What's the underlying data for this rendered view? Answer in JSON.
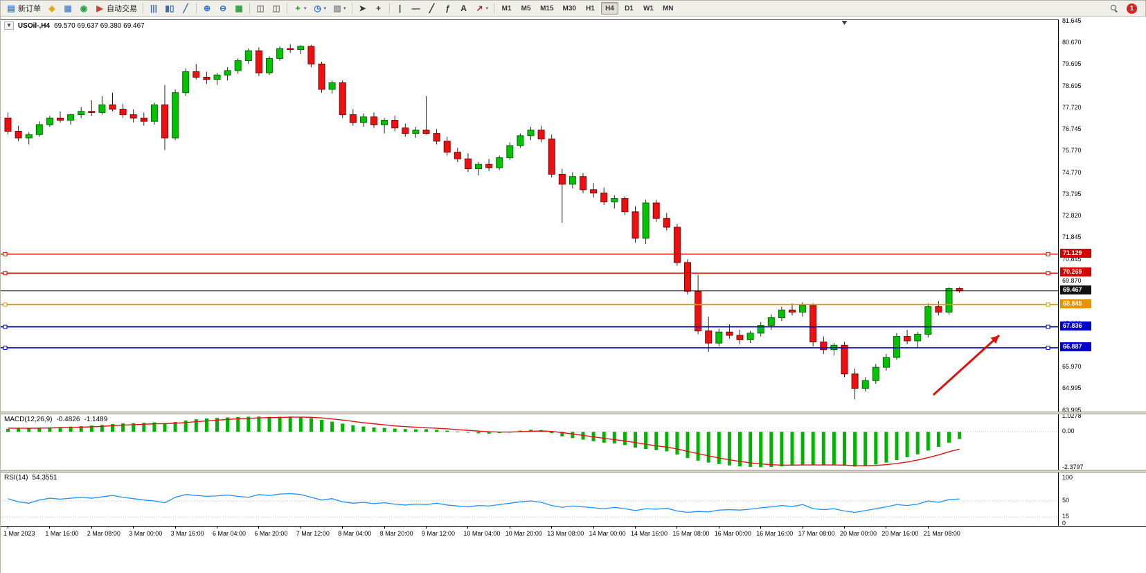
{
  "icons": {
    "one_click_glyph": "▼",
    "dropdown_glyph": "▾"
  },
  "colors": {
    "bull": "#00c400",
    "bull_border": "#006600",
    "bear": "#ee1010",
    "bear_border": "#7d0000",
    "wick": "#222222",
    "macd_hist": "#00b400",
    "macd_signal": "#e01010",
    "rsi_line": "#1e90ff",
    "toolbar_bg": "#f0efe9"
  },
  "toolbar": {
    "items": [
      {
        "type": "button",
        "name": "new-order-button",
        "icon": "new-order-icon",
        "glyph": "▤",
        "color": "#4a7fd0",
        "label": "新订单"
      },
      {
        "type": "button",
        "name": "chart-window-button",
        "icon": "chart-window-icon",
        "glyph": "◈",
        "color": "#e3a50c"
      },
      {
        "type": "button",
        "name": "profiles-button",
        "icon": "profiles-icon",
        "glyph": "▦",
        "color": "#5b8dd9"
      },
      {
        "type": "button",
        "name": "mql-community-button",
        "icon": "community-icon",
        "glyph": "◉",
        "color": "#2e9e40"
      },
      {
        "type": "button",
        "name": "autotrading-button",
        "icon": "autotrading-icon",
        "glyph": "▶",
        "color": "#d23b2e",
        "label": "自动交易"
      },
      {
        "type": "sep"
      },
      {
        "type": "button",
        "name": "bar-chart-button",
        "icon": "bar-chart-icon",
        "glyph": "|||",
        "color": "#3a6ea5"
      },
      {
        "type": "button",
        "name": "candlestick-chart-button",
        "icon": "candlestick-icon",
        "glyph": "▮▯",
        "color": "#3a6ea5"
      },
      {
        "type": "button",
        "name": "line-chart-button",
        "icon": "line-chart-icon",
        "glyph": "╱",
        "color": "#3a6ea5"
      },
      {
        "type": "sep"
      },
      {
        "type": "button",
        "name": "zoom-in-button",
        "icon": "zoom-in-icon",
        "glyph": "⊕",
        "color": "#2a6fd6"
      },
      {
        "type": "button",
        "name": "zoom-out-button",
        "icon": "zoom-out-icon",
        "glyph": "⊖",
        "color": "#2a6fd6"
      },
      {
        "type": "button",
        "name": "tile-windows-button",
        "icon": "tile-windows-icon",
        "glyph": "▦",
        "color": "#2e9e40"
      },
      {
        "type": "sep"
      },
      {
        "type": "button",
        "name": "arrange-windows-button",
        "icon": "arrange-windows-icon",
        "glyph": "◫",
        "color": "#7a7a7a"
      },
      {
        "type": "button",
        "name": "cascade-windows-button",
        "icon": "cascade-windows-icon",
        "glyph": "◫",
        "color": "#7a7a7a"
      },
      {
        "type": "sep"
      },
      {
        "type": "button",
        "name": "indicators-button",
        "icon": "indicators-icon",
        "glyph": "+",
        "color": "#0a9a0a",
        "dropdown": true
      },
      {
        "type": "button",
        "name": "periods-button",
        "icon": "clock-icon",
        "glyph": "◷",
        "color": "#2a6fd6",
        "dropdown": true
      },
      {
        "type": "button",
        "name": "templates-button",
        "icon": "template-icon",
        "glyph": "▨",
        "color": "#8a8a8a",
        "dropdown": true
      },
      {
        "type": "sep"
      },
      {
        "type": "button",
        "name": "cursor-button",
        "icon": "cursor-icon",
        "glyph": "➤",
        "color": "#333333"
      },
      {
        "type": "button",
        "name": "crosshair-button",
        "icon": "crosshair-icon",
        "glyph": "+",
        "color": "#333333"
      },
      {
        "type": "sep"
      },
      {
        "type": "button",
        "name": "vertical-line-button",
        "icon": "vertical-line-icon",
        "glyph": "|",
        "color": "#333333"
      },
      {
        "type": "button",
        "name": "horizontal-line-button",
        "icon": "horizontal-line-icon",
        "glyph": "—",
        "color": "#333333"
      },
      {
        "type": "button",
        "name": "trendline-button",
        "icon": "trendline-icon",
        "glyph": "╱",
        "color": "#333333"
      },
      {
        "type": "button",
        "name": "fibonacci-button",
        "icon": "fibonacci-icon",
        "glyph": "ƒ",
        "color": "#333333"
      },
      {
        "type": "button",
        "name": "text-button",
        "icon": "text-icon",
        "glyph": "A",
        "color": "#333333"
      },
      {
        "type": "button",
        "name": "arrows-button",
        "icon": "arrow-objects-icon",
        "glyph": "↗",
        "color": "#c02020",
        "dropdown": true
      },
      {
        "type": "sep"
      },
      {
        "type": "tf",
        "name": "timeframe-group",
        "labels": [
          "M1",
          "M5",
          "M15",
          "M30",
          "H1",
          "H4",
          "D1",
          "W1",
          "MN"
        ],
        "active": "H4"
      },
      {
        "type": "spacer"
      },
      {
        "type": "button",
        "name": "search-button",
        "icon": "search-icon",
        "glyph": "",
        "color": "#555555"
      },
      {
        "type": "badge",
        "name": "notification-badge",
        "count": "1",
        "color": "#e02020"
      }
    ]
  },
  "chart": {
    "symbol_period": "USOil-,H4",
    "ohlc_text": "69.570 69.637 69.380 69.467"
  },
  "chart_data": {
    "type": "candlestick",
    "symbol": "USOil-",
    "timeframe": "H4",
    "ohlc_display": {
      "open": "69.570",
      "high": "69.637",
      "low": "69.380",
      "close": "69.467"
    },
    "price_axis": {
      "top_value": 81.645,
      "bottom_value": 63.995,
      "labels": [
        "81.645",
        "80.670",
        "79.695",
        "78.695",
        "77.720",
        "76.745",
        "75.770",
        "74.770",
        "73.795",
        "72.820",
        "71.845",
        "70.845",
        "69.870",
        "68.895",
        "67.920",
        "66.945",
        "65.970",
        "64.995",
        "63.995"
      ]
    },
    "time_axis": {
      "bars_per_label": 4,
      "labels": [
        "1 Mar 2023",
        "1 Mar 16:00",
        "2 Mar 08:00",
        "3 Mar 00:00",
        "3 Mar 16:00",
        "6 Mar 04:00",
        "6 Mar 20:00",
        "7 Mar 12:00",
        "8 Mar 04:00",
        "8 Mar 20:00",
        "9 Mar 12:00",
        "10 Mar 04:00",
        "10 Mar 20:00",
        "13 Mar 08:00",
        "14 Mar 00:00",
        "14 Mar 16:00",
        "15 Mar 08:00",
        "16 Mar 00:00",
        "16 Mar 16:00",
        "17 Mar 08:00",
        "20 Mar 00:00",
        "20 Mar 16:00",
        "21 Mar 08:00"
      ]
    },
    "candles": [
      [
        77.3,
        77.55,
        76.55,
        76.7
      ],
      [
        76.7,
        76.95,
        76.25,
        76.4
      ],
      [
        76.4,
        76.65,
        76.1,
        76.55
      ],
      [
        76.55,
        77.15,
        76.45,
        77.0
      ],
      [
        77.0,
        77.4,
        76.9,
        77.3
      ],
      [
        77.3,
        77.6,
        77.1,
        77.2
      ],
      [
        77.2,
        77.5,
        77.0,
        77.45
      ],
      [
        77.45,
        77.8,
        77.3,
        77.6
      ],
      [
        77.6,
        78.1,
        77.4,
        77.55
      ],
      [
        77.55,
        78.3,
        77.45,
        77.9
      ],
      [
        77.9,
        78.45,
        77.6,
        77.7
      ],
      [
        77.7,
        77.95,
        77.3,
        77.45
      ],
      [
        77.45,
        77.7,
        77.1,
        77.3
      ],
      [
        77.3,
        77.55,
        76.95,
        77.15
      ],
      [
        77.15,
        78.0,
        77.0,
        77.9
      ],
      [
        77.9,
        78.8,
        75.85,
        76.4
      ],
      [
        76.4,
        78.6,
        76.3,
        78.45
      ],
      [
        78.45,
        79.55,
        78.3,
        79.4
      ],
      [
        79.4,
        79.75,
        79.05,
        79.15
      ],
      [
        79.15,
        79.4,
        78.85,
        79.05
      ],
      [
        79.05,
        79.35,
        78.8,
        79.25
      ],
      [
        79.25,
        79.6,
        79.0,
        79.45
      ],
      [
        79.45,
        80.0,
        79.3,
        79.9
      ],
      [
        79.9,
        80.45,
        79.75,
        80.35
      ],
      [
        80.35,
        80.5,
        79.2,
        79.35
      ],
      [
        79.35,
        80.1,
        79.25,
        80.0
      ],
      [
        80.0,
        80.55,
        79.9,
        80.45
      ],
      [
        80.45,
        80.65,
        80.25,
        80.4
      ],
      [
        80.4,
        80.6,
        80.2,
        80.55
      ],
      [
        80.55,
        80.62,
        79.6,
        79.75
      ],
      [
        79.75,
        79.85,
        78.45,
        78.6
      ],
      [
        78.6,
        79.0,
        78.4,
        78.9
      ],
      [
        78.9,
        79.0,
        77.3,
        77.45
      ],
      [
        77.45,
        77.7,
        76.95,
        77.1
      ],
      [
        77.1,
        77.5,
        76.9,
        77.35
      ],
      [
        77.35,
        77.55,
        76.85,
        77.0
      ],
      [
        77.0,
        77.3,
        76.6,
        77.2
      ],
      [
        77.2,
        77.4,
        76.7,
        76.85
      ],
      [
        76.85,
        77.05,
        76.45,
        76.6
      ],
      [
        76.6,
        76.9,
        76.4,
        76.75
      ],
      [
        76.75,
        78.3,
        76.55,
        76.6
      ],
      [
        76.6,
        76.8,
        76.1,
        76.25
      ],
      [
        76.25,
        76.45,
        75.6,
        75.75
      ],
      [
        75.75,
        75.95,
        75.3,
        75.45
      ],
      [
        75.45,
        75.7,
        74.85,
        75.0
      ],
      [
        75.0,
        75.3,
        74.7,
        75.2
      ],
      [
        75.2,
        75.45,
        74.9,
        75.05
      ],
      [
        75.05,
        75.6,
        74.95,
        75.5
      ],
      [
        75.5,
        76.2,
        75.4,
        76.05
      ],
      [
        76.05,
        76.6,
        75.95,
        76.5
      ],
      [
        76.5,
        76.9,
        76.3,
        76.75
      ],
      [
        76.75,
        76.95,
        76.2,
        76.35
      ],
      [
        76.35,
        76.55,
        74.6,
        74.75
      ],
      [
        74.75,
        75.0,
        72.55,
        74.3
      ],
      [
        74.3,
        74.85,
        74.1,
        74.65
      ],
      [
        74.65,
        74.8,
        73.9,
        74.05
      ],
      [
        74.05,
        74.35,
        73.7,
        73.9
      ],
      [
        73.9,
        74.15,
        73.35,
        73.5
      ],
      [
        73.5,
        73.8,
        73.2,
        73.65
      ],
      [
        73.65,
        73.75,
        72.9,
        73.05
      ],
      [
        73.05,
        73.3,
        71.65,
        71.85
      ],
      [
        71.85,
        73.6,
        71.6,
        73.45
      ],
      [
        73.45,
        73.6,
        72.6,
        72.75
      ],
      [
        72.75,
        73.0,
        72.2,
        72.35
      ],
      [
        72.35,
        72.5,
        70.6,
        70.75
      ],
      [
        70.75,
        70.9,
        69.3,
        69.45
      ],
      [
        69.45,
        70.2,
        67.5,
        67.65
      ],
      [
        67.65,
        68.3,
        66.7,
        67.1
      ],
      [
        67.1,
        67.75,
        66.95,
        67.6
      ],
      [
        67.6,
        67.95,
        67.3,
        67.45
      ],
      [
        67.45,
        67.7,
        67.05,
        67.25
      ],
      [
        67.25,
        67.65,
        67.1,
        67.55
      ],
      [
        67.55,
        68.05,
        67.4,
        67.9
      ],
      [
        67.9,
        68.4,
        67.7,
        68.25
      ],
      [
        68.25,
        68.75,
        68.1,
        68.6
      ],
      [
        68.6,
        68.9,
        68.35,
        68.5
      ],
      [
        68.5,
        68.95,
        68.3,
        68.8
      ],
      [
        68.8,
        68.9,
        66.95,
        67.15
      ],
      [
        67.15,
        67.4,
        66.6,
        66.8
      ],
      [
        66.8,
        67.1,
        66.55,
        67.0
      ],
      [
        67.0,
        67.15,
        65.55,
        65.7
      ],
      [
        65.7,
        65.95,
        64.55,
        65.05
      ],
      [
        65.05,
        65.55,
        64.9,
        65.4
      ],
      [
        65.4,
        66.15,
        65.25,
        66.0
      ],
      [
        66.0,
        66.6,
        65.85,
        66.45
      ],
      [
        66.45,
        67.55,
        66.35,
        67.4
      ],
      [
        67.4,
        67.7,
        67.05,
        67.2
      ],
      [
        67.2,
        67.6,
        66.9,
        67.5
      ],
      [
        67.5,
        68.9,
        67.35,
        68.75
      ],
      [
        68.75,
        69.0,
        68.35,
        68.5
      ],
      [
        68.5,
        69.62,
        68.4,
        69.57
      ],
      [
        69.57,
        69.637,
        69.38,
        69.467
      ]
    ],
    "hlines": [
      {
        "price": 71.129,
        "label": "71.129",
        "color": "#d40000",
        "width": 1.4,
        "handles": true
      },
      {
        "price": 70.269,
        "label": "70.269",
        "color": "#d40000",
        "width": 1.4,
        "handles": true
      },
      {
        "price": 69.467,
        "label": "69.467",
        "color": "#111111",
        "width": 1,
        "handles": false
      },
      {
        "price": 68.845,
        "label": "68.845",
        "color": "#e69500",
        "width": 1.6,
        "handles": true
      },
      {
        "price": 67.836,
        "label": "67.836",
        "color": "#0000cc",
        "width": 1.6,
        "handles": true
      },
      {
        "price": 66.887,
        "label": "66.887",
        "color": "#0000cc",
        "width": 1.6,
        "handles": true
      }
    ],
    "objects": {
      "arrow": {
        "from_index": 88.5,
        "from_price": 64.75,
        "to_index": 94.8,
        "to_price": 67.45,
        "color": "#e01010",
        "width": 3
      }
    },
    "shift_marker": {
      "index": 80.3
    },
    "macd": {
      "name": "MACD(12,26,9)",
      "main_value": "-0.4826",
      "signal_value": "-1.1489",
      "axis_labels": [
        "1.0278",
        "0.00",
        "-2.3797"
      ],
      "max": 1.17,
      "min": -2.53,
      "histogram": [
        0.2,
        0.22,
        0.24,
        0.27,
        0.3,
        0.32,
        0.35,
        0.38,
        0.42,
        0.46,
        0.52,
        0.56,
        0.58,
        0.6,
        0.63,
        0.58,
        0.66,
        0.76,
        0.84,
        0.9,
        0.93,
        0.96,
        0.99,
        1.01,
        1.02,
        1.0,
        1.01,
        1.02,
        0.99,
        0.92,
        0.8,
        0.68,
        0.55,
        0.44,
        0.36,
        0.3,
        0.26,
        0.22,
        0.19,
        0.17,
        0.18,
        0.14,
        0.08,
        0.02,
        -0.05,
        -0.1,
        -0.12,
        -0.08,
        0.0,
        0.08,
        0.14,
        0.12,
        -0.08,
        -0.3,
        -0.42,
        -0.52,
        -0.62,
        -0.72,
        -0.78,
        -0.88,
        -1.05,
        -1.15,
        -1.22,
        -1.3,
        -1.52,
        -1.75,
        -1.92,
        -2.05,
        -2.15,
        -2.24,
        -2.3,
        -2.34,
        -2.36,
        -2.34,
        -2.3,
        -2.24,
        -2.18,
        -2.2,
        -2.22,
        -2.2,
        -2.26,
        -2.32,
        -2.28,
        -2.18,
        -2.05,
        -1.88,
        -1.7,
        -1.5,
        -1.25,
        -1.0,
        -0.72,
        -0.48
      ],
      "signal": [
        0.25,
        0.24,
        0.24,
        0.25,
        0.26,
        0.28,
        0.29,
        0.31,
        0.34,
        0.37,
        0.41,
        0.45,
        0.48,
        0.51,
        0.54,
        0.55,
        0.58,
        0.62,
        0.68,
        0.73,
        0.78,
        0.83,
        0.87,
        0.9,
        0.93,
        0.95,
        0.96,
        0.98,
        0.98,
        0.97,
        0.93,
        0.86,
        0.79,
        0.7,
        0.61,
        0.54,
        0.47,
        0.4,
        0.35,
        0.31,
        0.27,
        0.24,
        0.2,
        0.15,
        0.1,
        0.05,
        0.01,
        -0.01,
        -0.01,
        0.01,
        0.04,
        0.06,
        0.03,
        -0.05,
        -0.14,
        -0.24,
        -0.33,
        -0.43,
        -0.52,
        -0.61,
        -0.72,
        -0.83,
        -0.93,
        -1.02,
        -1.14,
        -1.3,
        -1.45,
        -1.6,
        -1.74,
        -1.86,
        -1.97,
        -2.07,
        -2.14,
        -2.19,
        -2.22,
        -2.22,
        -2.21,
        -2.21,
        -2.21,
        -2.21,
        -2.22,
        -2.25,
        -2.26,
        -2.24,
        -2.19,
        -2.11,
        -2.01,
        -1.88,
        -1.72,
        -1.54,
        -1.33,
        -1.15
      ]
    },
    "rsi": {
      "name": "RSI(14)",
      "value": "54.3551",
      "axis_labels": [
        "100",
        "50",
        "15",
        "0"
      ],
      "max": 100,
      "min": 0,
      "level_lines": [
        50,
        15
      ],
      "values": [
        55,
        48,
        45,
        52,
        56,
        54,
        56,
        58,
        56,
        59,
        62,
        58,
        55,
        52,
        50,
        46,
        58,
        64,
        62,
        60,
        61,
        63,
        60,
        58,
        64,
        62,
        65,
        66,
        64,
        58,
        52,
        55,
        48,
        45,
        47,
        44,
        46,
        43,
        41,
        43,
        42,
        45,
        41,
        39,
        37,
        40,
        39,
        42,
        45,
        48,
        50,
        47,
        40,
        36,
        39,
        37,
        35,
        33,
        36,
        33,
        29,
        33,
        32,
        34,
        28,
        25,
        27,
        26,
        30,
        31,
        30,
        32,
        35,
        37,
        40,
        38,
        42,
        33,
        31,
        33,
        28,
        25,
        29,
        33,
        37,
        42,
        40,
        43,
        50,
        47,
        53,
        54.36
      ]
    }
  }
}
